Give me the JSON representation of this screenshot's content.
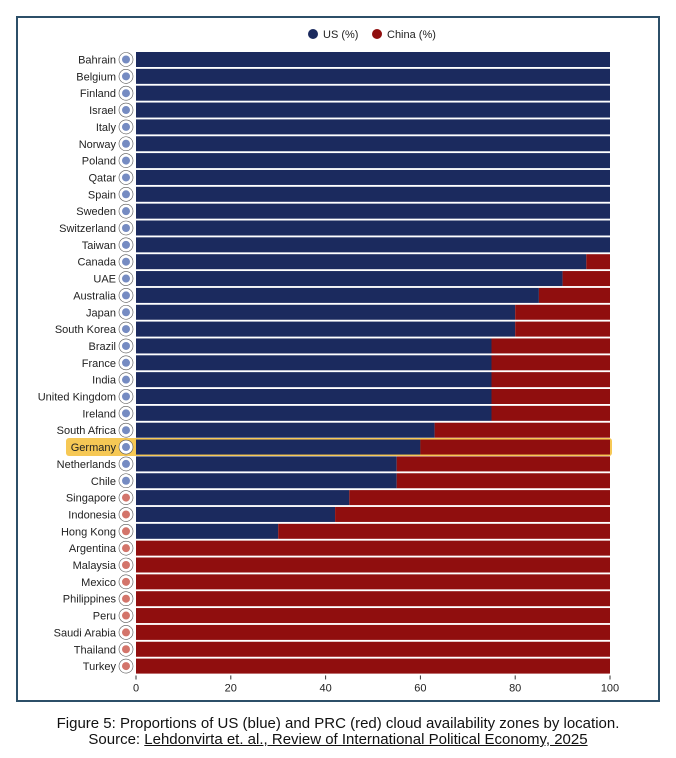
{
  "chart_data": {
    "type": "bar",
    "orientation": "horizontal",
    "stacked": true,
    "categories": [
      "Bahrain",
      "Belgium",
      "Finland",
      "Israel",
      "Italy",
      "Norway",
      "Poland",
      "Qatar",
      "Spain",
      "Sweden",
      "Switzerland",
      "Taiwan",
      "Canada",
      "UAE",
      "Australia",
      "Japan",
      "South Korea",
      "Brazil",
      "France",
      "India",
      "United Kingdom",
      "Ireland",
      "South Africa",
      "Germany",
      "Netherlands",
      "Chile",
      "Singapore",
      "Indonesia",
      "Hong Kong",
      "Argentina",
      "Malaysia",
      "Mexico",
      "Philippines",
      "Peru",
      "Saudi Arabia",
      "Thailand",
      "Turkey"
    ],
    "series": [
      {
        "name": "US (%)",
        "color": "#1b2a5e",
        "values": [
          100,
          100,
          100,
          100,
          100,
          100,
          100,
          100,
          100,
          100,
          100,
          100,
          95,
          90,
          85,
          80,
          80,
          75,
          75,
          75,
          75,
          75,
          63,
          60,
          55,
          55,
          45,
          42,
          30,
          0,
          0,
          0,
          0,
          0,
          0,
          0,
          0
        ]
      },
      {
        "name": "China (%)",
        "color": "#900e0e",
        "values": [
          0,
          0,
          0,
          0,
          0,
          0,
          0,
          0,
          0,
          0,
          0,
          0,
          5,
          10,
          15,
          20,
          20,
          25,
          25,
          25,
          25,
          25,
          37,
          40,
          45,
          45,
          55,
          58,
          70,
          100,
          100,
          100,
          100,
          100,
          100,
          100,
          100
        ]
      }
    ],
    "highlight": "Germany",
    "highlight_color": "#f5c242",
    "xlim": [
      0,
      100
    ],
    "xticks": [
      0,
      20,
      40,
      60,
      80,
      100
    ],
    "legend_position": "top-center",
    "title": "",
    "xlabel": "",
    "ylabel": ""
  },
  "caption": {
    "line1": "Figure 5: Proportions of US (blue) and PRC (red) cloud availability zones by location.",
    "source_label": "Source: ",
    "source_link": "Lehdonvirta et. al., Review of International Political Economy, 2025"
  }
}
